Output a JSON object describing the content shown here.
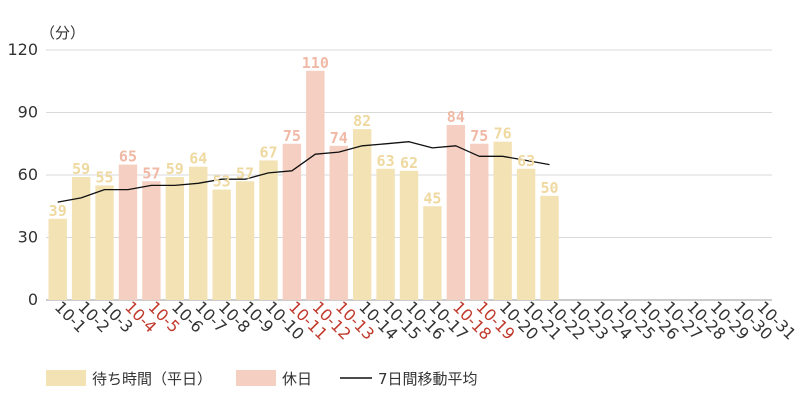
{
  "chart_data": {
    "type": "bar",
    "y_unit": "（分）",
    "ylim": [
      0,
      120
    ],
    "yticks": [
      0,
      30,
      60,
      90,
      120
    ],
    "grid": true,
    "legend_position": "bottom-left",
    "categories": [
      "10-1",
      "10-2",
      "10-3",
      "10-4",
      "10-5",
      "10-6",
      "10-7",
      "10-8",
      "10-9",
      "10-10",
      "10-11",
      "10-12",
      "10-13",
      "10-14",
      "10-15",
      "10-16",
      "10-17",
      "10-18",
      "10-19",
      "10-20",
      "10-21",
      "10-22",
      "10-23",
      "10-24",
      "10-25",
      "10-26",
      "10-27",
      "10-28",
      "10-29",
      "10-30",
      "10-31"
    ],
    "holidays": [
      "10-4",
      "10-5",
      "10-11",
      "10-12",
      "10-13",
      "10-18",
      "10-19"
    ],
    "series": [
      {
        "name": "待ち時間（平日）",
        "kind": "bar",
        "color": "#f2e2b4",
        "label_color": "#efd9a0",
        "values": [
          39,
          59,
          55,
          null,
          null,
          59,
          64,
          53,
          57,
          67,
          null,
          null,
          null,
          82,
          63,
          62,
          45,
          null,
          null,
          76,
          63,
          50,
          null,
          null,
          null,
          null,
          null,
          null,
          null,
          null,
          null
        ]
      },
      {
        "name": "休日",
        "kind": "bar",
        "color": "#f5cfc1",
        "label_color": "#f0b9a5",
        "values": [
          null,
          null,
          null,
          65,
          57,
          null,
          null,
          null,
          null,
          null,
          75,
          110,
          74,
          null,
          null,
          null,
          null,
          84,
          75,
          null,
          null,
          null,
          null,
          null,
          null,
          null,
          null,
          null,
          null,
          null,
          null
        ]
      },
      {
        "name": "7日間移動平均",
        "kind": "line",
        "color": "#111111",
        "values": [
          47,
          49,
          53,
          53,
          55,
          55,
          56,
          58,
          58,
          61,
          62,
          70,
          71,
          74,
          75,
          76,
          73,
          74,
          69,
          69,
          67,
          65,
          null,
          null,
          null,
          null,
          null,
          null,
          null,
          null,
          null
        ]
      }
    ],
    "x_tick_colors": {
      "normal": "#333333",
      "holiday": "#c0392b"
    }
  }
}
